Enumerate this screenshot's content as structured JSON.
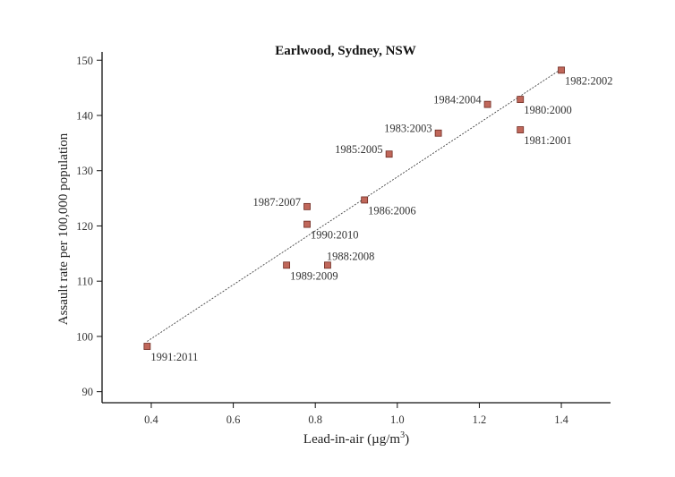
{
  "chart_data": {
    "type": "scatter",
    "title": "Earlwood, Sydney, NSW",
    "xlabel": "Lead-in-air (µg/m",
    "xlabel_superscript": "3",
    "xlabel_suffix": ")",
    "ylabel": "Assault rate per 100,000 population",
    "xlim": [
      0.28,
      1.52
    ],
    "ylim": [
      88,
      151.5
    ],
    "x_ticks": [
      0.4,
      0.6,
      0.8,
      1.0,
      1.2,
      1.4
    ],
    "x_tick_labels": [
      "0.4",
      "0.6",
      "0.8",
      "1.0",
      "1.2",
      "1.4"
    ],
    "y_ticks": [
      90,
      100,
      110,
      120,
      130,
      140,
      150
    ],
    "y_tick_labels": [
      "90",
      "100",
      "110",
      "120",
      "130",
      "140",
      "150"
    ],
    "grid": false,
    "legend": "none",
    "trendline": {
      "style": "dashed",
      "x": [
        0.39,
        1.4
      ],
      "y": [
        99.1,
        148.4
      ]
    },
    "points": [
      {
        "label": "1982:2002",
        "x": 1.4,
        "y": 148.2,
        "label_pos": "below-right"
      },
      {
        "label": "1984:2004",
        "x": 1.22,
        "y": 142.0,
        "label_pos": "left"
      },
      {
        "label": "1980:2000",
        "x": 1.3,
        "y": 142.9,
        "label_pos": "below-right"
      },
      {
        "label": "1981:2001",
        "x": 1.3,
        "y": 137.4,
        "label_pos": "below-right"
      },
      {
        "label": "1983:2003",
        "x": 1.1,
        "y": 136.8,
        "label_pos": "left"
      },
      {
        "label": "1985:2005",
        "x": 0.98,
        "y": 133.0,
        "label_pos": "left"
      },
      {
        "label": "1986:2006",
        "x": 0.92,
        "y": 124.7,
        "label_pos": "below-right"
      },
      {
        "label": "1987:2007",
        "x": 0.78,
        "y": 123.5,
        "label_pos": "left"
      },
      {
        "label": "1990:2010",
        "x": 0.78,
        "y": 120.3,
        "label_pos": "below-right"
      },
      {
        "label": "1988:2008",
        "x": 0.83,
        "y": 112.9,
        "label_pos": "above-right"
      },
      {
        "label": "1989:2009",
        "x": 0.73,
        "y": 112.9,
        "label_pos": "below-right"
      },
      {
        "label": "1991:2011",
        "x": 0.39,
        "y": 98.2,
        "label_pos": "below-right"
      }
    ],
    "colors": {
      "marker_fill": "#c0675a",
      "marker_stroke": "#6e2b22"
    }
  }
}
